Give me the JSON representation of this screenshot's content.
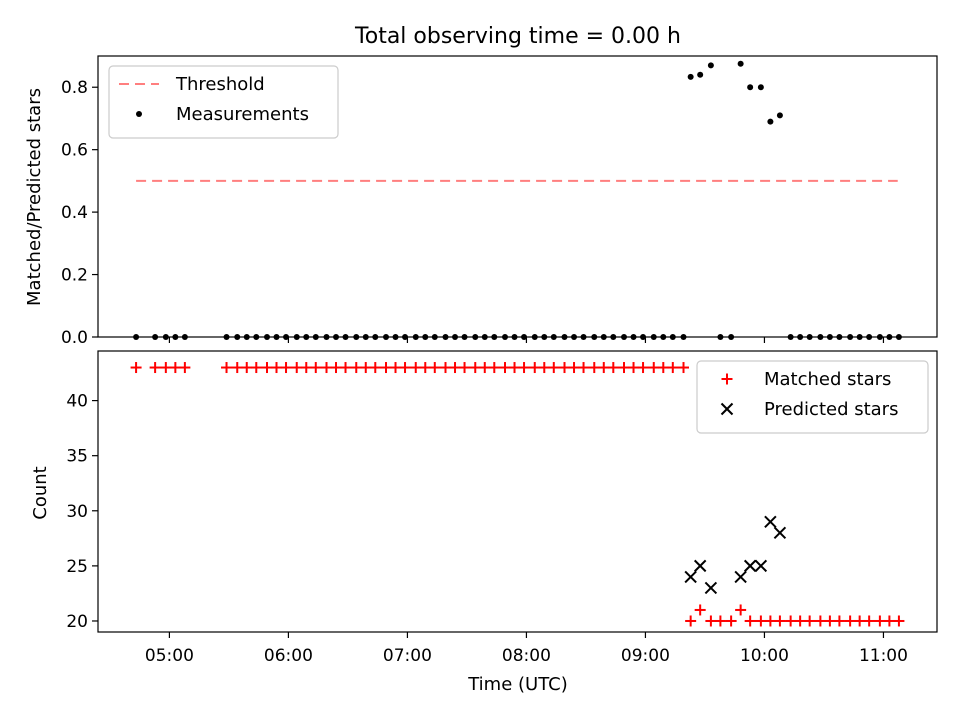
{
  "chart_data": [
    {
      "type": "scatter",
      "title": "Total observing time = 0.00 h",
      "xlabel": "",
      "ylabel": "Matched/Predicted stars",
      "ylim": [
        0,
        0.9
      ],
      "yticks": [
        "0.0",
        "0.2",
        "0.4",
        "0.6",
        "0.8"
      ],
      "xlim": [
        4.4,
        11.45
      ],
      "xticks": [
        "05:00",
        "06:00",
        "07:00",
        "08:00",
        "09:00",
        "10:00",
        "11:00"
      ],
      "grid": false,
      "legend_position": "upper left",
      "threshold": {
        "name": "Threshold",
        "style": "dashed",
        "color": "#ff7f7f",
        "y": 0.5,
        "x_range": [
          4.72,
          11.12
        ]
      },
      "series": [
        {
          "name": "Measurements",
          "marker": "dot",
          "color": "#000000",
          "x": [
            4.72,
            4.88,
            4.97,
            5.05,
            5.13,
            5.48,
            5.57,
            5.65,
            5.73,
            5.82,
            5.9,
            5.98,
            6.07,
            6.15,
            6.23,
            6.32,
            6.4,
            6.48,
            6.57,
            6.65,
            6.73,
            6.82,
            6.9,
            6.98,
            7.07,
            7.15,
            7.23,
            7.32,
            7.4,
            7.48,
            7.57,
            7.65,
            7.73,
            7.82,
            7.9,
            7.98,
            8.07,
            8.15,
            8.23,
            8.32,
            8.4,
            8.48,
            8.57,
            8.65,
            8.73,
            8.82,
            8.9,
            8.98,
            9.07,
            9.15,
            9.23,
            9.32,
            9.38,
            9.46,
            9.55,
            9.63,
            9.72,
            9.8,
            9.88,
            9.97,
            10.05,
            10.13,
            10.22,
            10.3,
            10.38,
            10.47,
            10.55,
            10.63,
            10.72,
            10.8,
            10.88,
            10.97,
            11.05,
            11.13
          ],
          "y": [
            0,
            0,
            0,
            0,
            0,
            0,
            0,
            0,
            0,
            0,
            0,
            0,
            0,
            0,
            0,
            0,
            0,
            0,
            0,
            0,
            0,
            0,
            0,
            0,
            0,
            0,
            0,
            0,
            0,
            0,
            0,
            0,
            0,
            0,
            0,
            0,
            0,
            0,
            0,
            0,
            0,
            0,
            0,
            0,
            0,
            0,
            0,
            0,
            0,
            0,
            0,
            0,
            0.833,
            0.84,
            0.87,
            0,
            0,
            0.875,
            0.8,
            0.8,
            0.69,
            0.71,
            0,
            0,
            0,
            0,
            0,
            0,
            0,
            0,
            0,
            0,
            0,
            0
          ]
        }
      ]
    },
    {
      "type": "scatter",
      "title": "",
      "xlabel": "Time (UTC)",
      "ylabel": "Count",
      "ylim": [
        19,
        44.5
      ],
      "yticks": [
        "20",
        "25",
        "30",
        "35",
        "40"
      ],
      "xlim": [
        4.4,
        11.45
      ],
      "xticks": [
        "05:00",
        "06:00",
        "07:00",
        "08:00",
        "09:00",
        "10:00",
        "11:00"
      ],
      "grid": false,
      "legend_position": "upper right",
      "series": [
        {
          "name": "Matched stars",
          "marker": "plus",
          "color": "#ff0000",
          "x": [
            4.72,
            4.88,
            4.97,
            5.05,
            5.13,
            5.48,
            5.57,
            5.65,
            5.73,
            5.82,
            5.9,
            5.98,
            6.07,
            6.15,
            6.23,
            6.32,
            6.4,
            6.48,
            6.57,
            6.65,
            6.73,
            6.82,
            6.9,
            6.98,
            7.07,
            7.15,
            7.23,
            7.32,
            7.4,
            7.48,
            7.57,
            7.65,
            7.73,
            7.82,
            7.9,
            7.98,
            8.07,
            8.15,
            8.23,
            8.32,
            8.4,
            8.48,
            8.57,
            8.65,
            8.73,
            8.82,
            8.9,
            8.98,
            9.07,
            9.15,
            9.23,
            9.32,
            9.38,
            9.46,
            9.55,
            9.63,
            9.72,
            9.8,
            9.88,
            9.97,
            10.05,
            10.13,
            10.22,
            10.3,
            10.38,
            10.47,
            10.55,
            10.63,
            10.72,
            10.8,
            10.88,
            10.97,
            11.05,
            11.13
          ],
          "y": [
            43,
            43,
            43,
            43,
            43,
            43,
            43,
            43,
            43,
            43,
            43,
            43,
            43,
            43,
            43,
            43,
            43,
            43,
            43,
            43,
            43,
            43,
            43,
            43,
            43,
            43,
            43,
            43,
            43,
            43,
            43,
            43,
            43,
            43,
            43,
            43,
            43,
            43,
            43,
            43,
            43,
            43,
            43,
            43,
            43,
            43,
            43,
            43,
            43,
            43,
            43,
            43,
            20,
            21,
            20,
            20,
            20,
            21,
            20,
            20,
            20,
            20,
            20,
            20,
            20,
            20,
            20,
            20,
            20,
            20,
            20,
            20,
            20,
            20
          ]
        },
        {
          "name": "Predicted stars",
          "marker": "x",
          "color": "#000000",
          "x": [
            9.38,
            9.46,
            9.55,
            9.8,
            9.88,
            9.97,
            10.05,
            10.13
          ],
          "y": [
            24,
            25,
            23,
            24,
            25,
            25,
            29,
            28
          ]
        }
      ]
    }
  ]
}
